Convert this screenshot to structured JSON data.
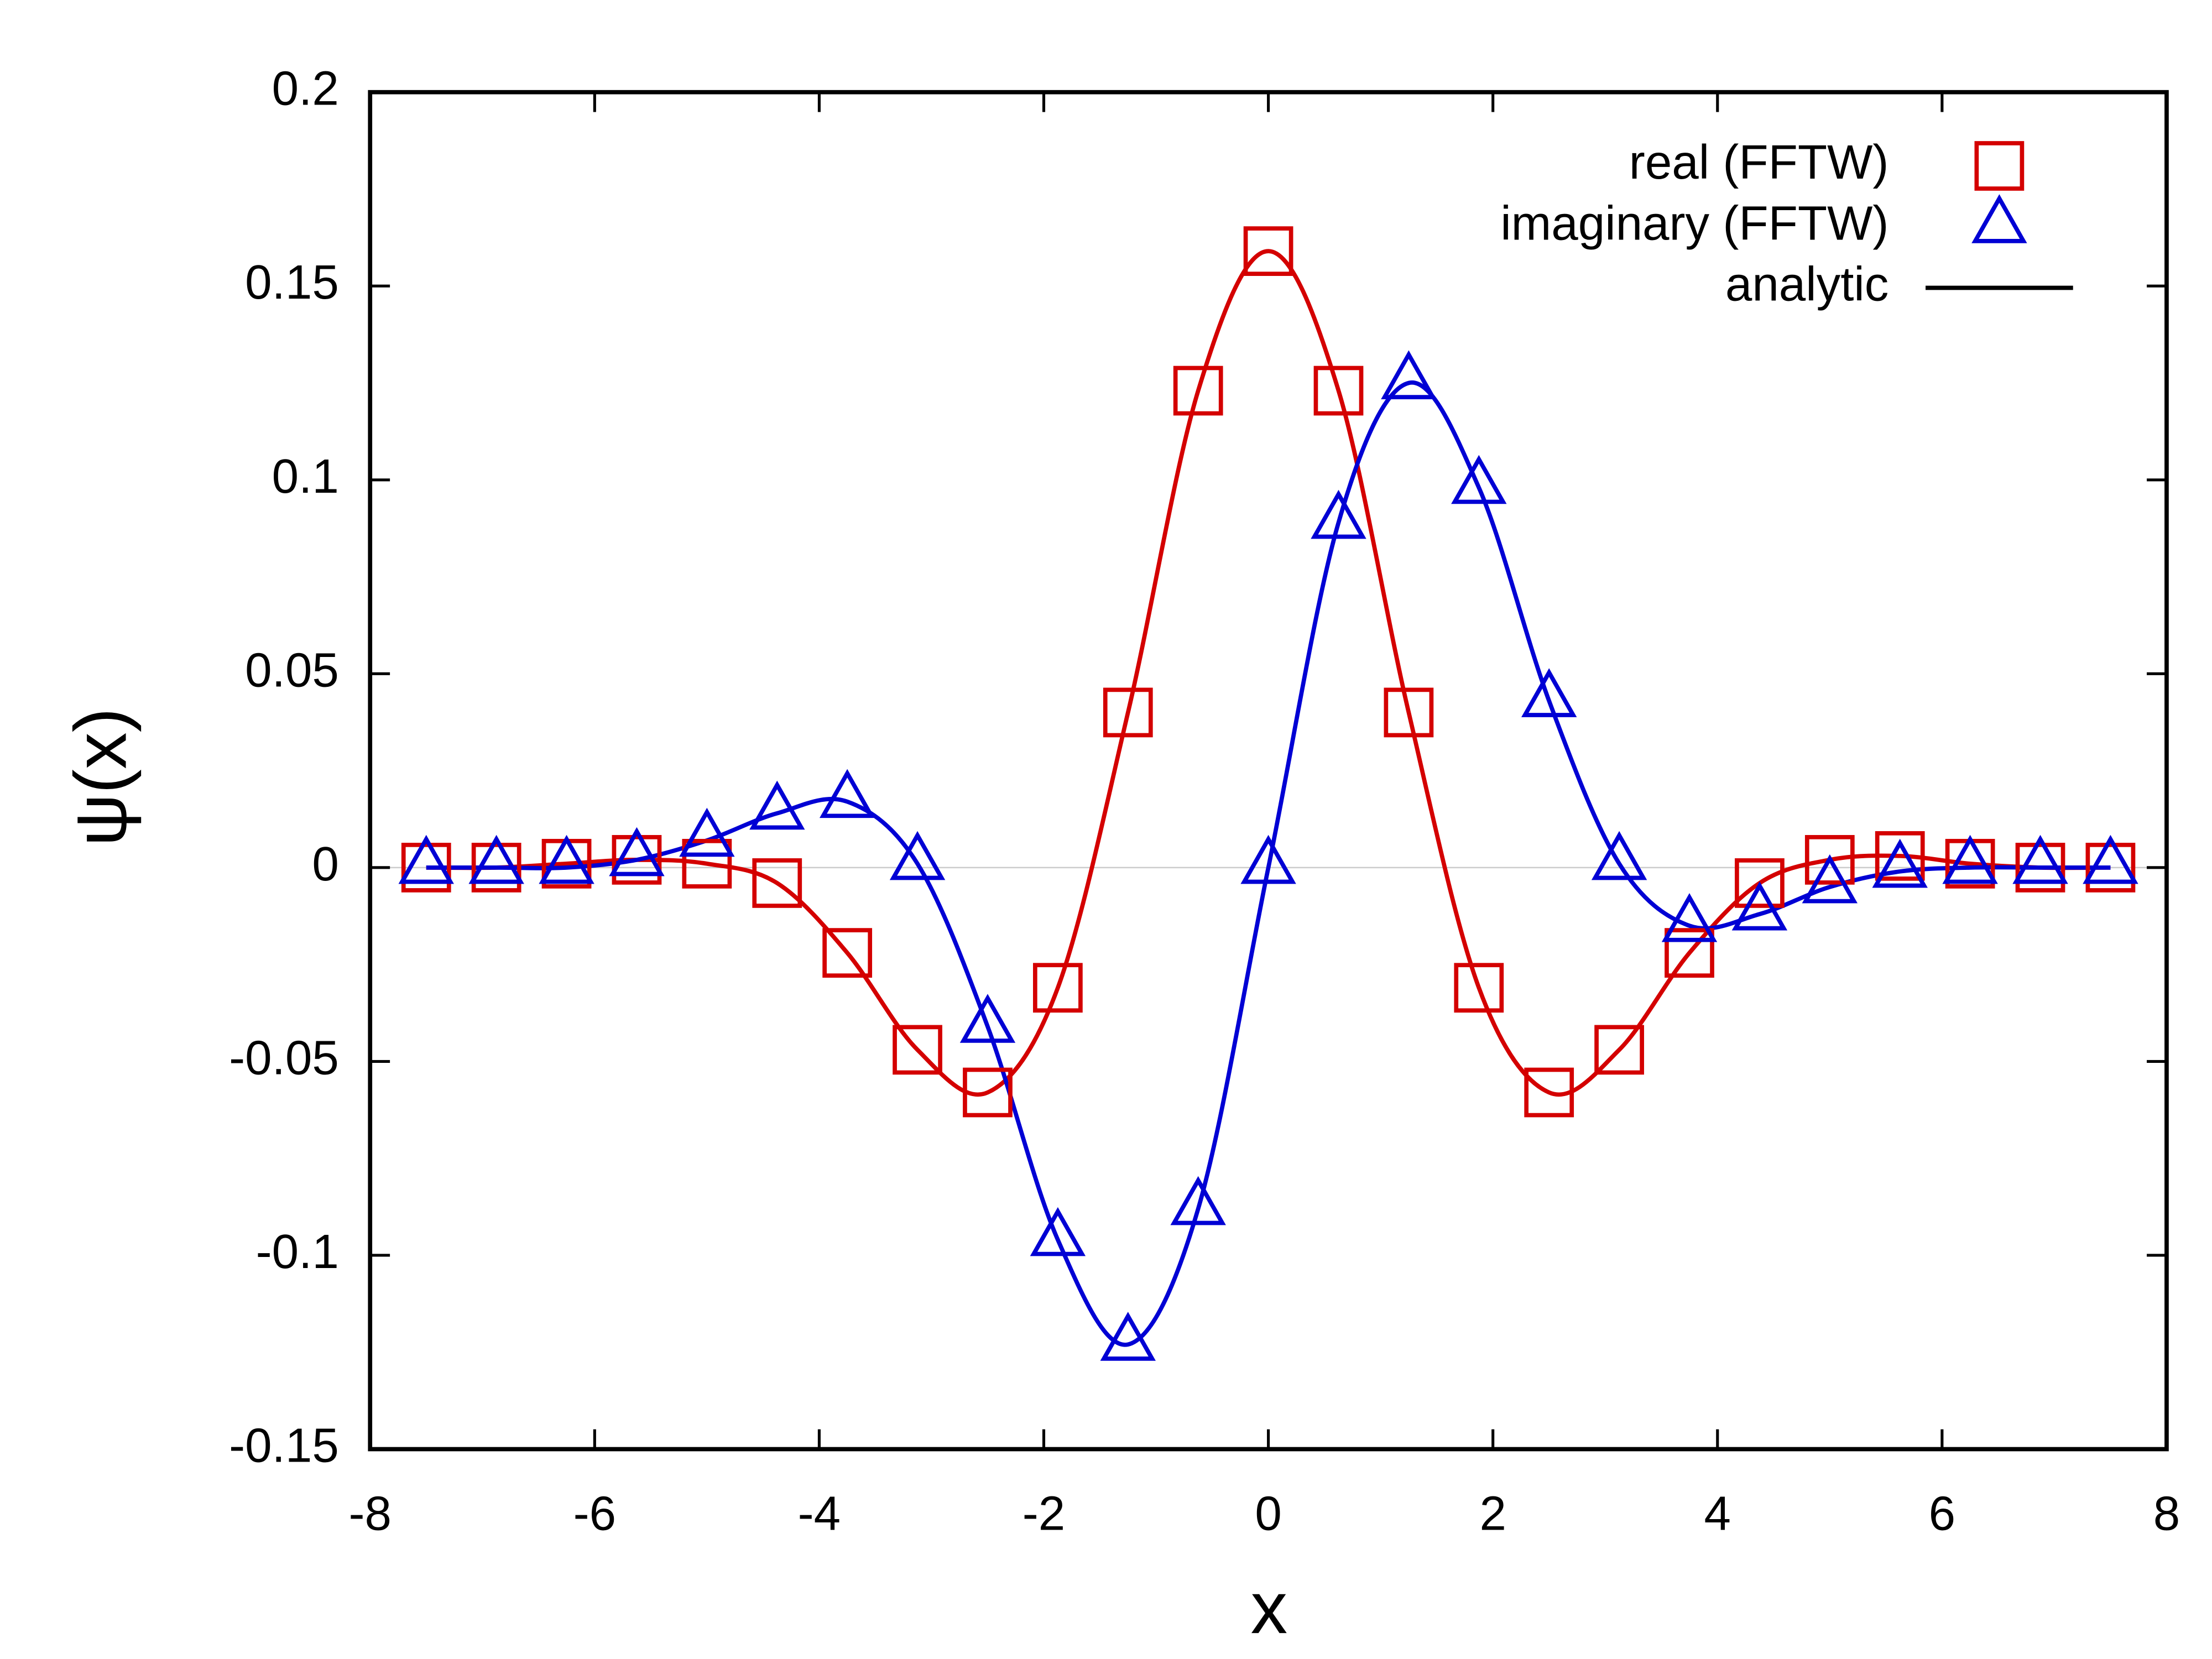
{
  "chart_data": {
    "type": "scatter",
    "xlabel": "x",
    "ylabel": "ψ(x)",
    "x": [
      -7.5,
      -6.875,
      -6.25,
      -5.625,
      -5,
      -4.375,
      -3.75,
      -3.125,
      -2.5,
      -1.875,
      -1.25,
      -0.625,
      0,
      0.625,
      1.25,
      1.875,
      2.5,
      3.125,
      3.75,
      4.375,
      5,
      5.625,
      6.25,
      6.875,
      7.5
    ],
    "series": [
      {
        "name": "real (FFTW)",
        "color": "#d40000",
        "marker": "square",
        "values": [
          0,
          0,
          0.001,
          0.002,
          0.001,
          -0.004,
          -0.022,
          -0.047,
          -0.058,
          -0.031,
          0.04,
          0.123,
          0.159,
          0.123,
          0.04,
          -0.031,
          -0.058,
          -0.047,
          -0.022,
          -0.004,
          0.002,
          0.003,
          0.001,
          0,
          0
        ]
      },
      {
        "name": "imaginary (FFTW)",
        "color": "#0000d4",
        "marker": "triangle",
        "values": [
          0,
          0,
          0,
          0.002,
          0.007,
          0.014,
          0.017,
          0.001,
          -0.041,
          -0.096,
          -0.123,
          -0.088,
          0,
          0.089,
          0.125,
          0.098,
          0.043,
          0.001,
          -0.015,
          -0.012,
          -0.005,
          -0.001,
          0,
          0,
          0
        ]
      },
      {
        "name": "analytic",
        "color": "#000000",
        "marker": "line"
      }
    ],
    "xlim": [
      -8,
      8
    ],
    "xticks": [
      -8,
      -6,
      -4,
      -2,
      0,
      2,
      4,
      6,
      8
    ],
    "ylim": [
      -0.15,
      0.2
    ],
    "yticks": [
      -0.15,
      -0.1,
      -0.05,
      0,
      0.05,
      0.1,
      0.15,
      0.2
    ],
    "legend": "upper right"
  }
}
